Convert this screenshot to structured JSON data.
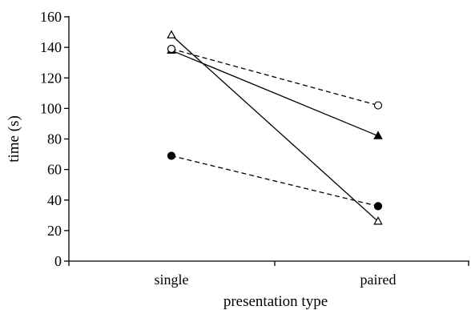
{
  "chart_data": {
    "type": "line",
    "title": "",
    "xlabel": "presentation type",
    "ylabel": "time (s)",
    "categories": [
      "single",
      "paired"
    ],
    "ylim": [
      0,
      160
    ],
    "yticks": [
      0,
      20,
      40,
      60,
      80,
      100,
      120,
      140,
      160
    ],
    "grid": false,
    "legend": "none",
    "series": [
      {
        "values": [
          138,
          82
        ],
        "marker": "filled-triangle",
        "line": "solid",
        "color": "#000000"
      },
      {
        "values": [
          148,
          26
        ],
        "marker": "open-triangle",
        "line": "solid",
        "color": "#000000"
      },
      {
        "values": [
          139,
          102
        ],
        "marker": "open-circle",
        "line": "dashed",
        "color": "#000000"
      },
      {
        "values": [
          69,
          36
        ],
        "marker": "filled-circle",
        "line": "dashed",
        "color": "#000000"
      }
    ]
  }
}
